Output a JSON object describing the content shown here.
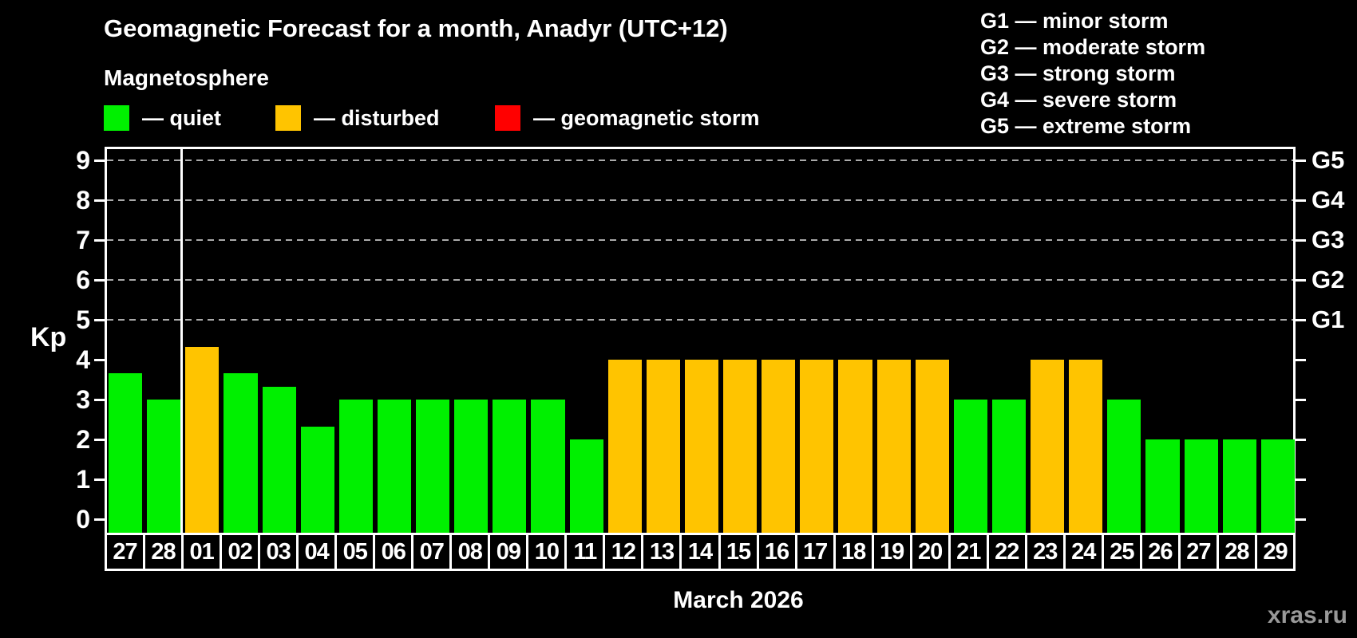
{
  "title": "Geomagnetic Forecast for a month, Anadyr (UTC+12)",
  "subtitle": "Magnetosphere",
  "legend": {
    "items": [
      {
        "name": "quiet",
        "label": "— quiet",
        "color": "#00f000"
      },
      {
        "name": "disturbed",
        "label": "— disturbed",
        "color": "#ffc400"
      },
      {
        "name": "storm",
        "label": "— geomagnetic storm",
        "color": "#ff0000"
      }
    ]
  },
  "g_legend": [
    "G1 — minor storm",
    "G2 — moderate storm",
    "G3 — strong storm",
    "G4 — severe storm",
    "G5 — extreme storm"
  ],
  "watermark": "xras.ru",
  "chart_data": {
    "type": "bar",
    "title": "Geomagnetic Forecast for a month, Anadyr (UTC+12)",
    "xlabel": "March 2026",
    "ylabel": "Kp",
    "ylim": [
      0,
      9
    ],
    "yticks": [
      0,
      1,
      2,
      3,
      4,
      5,
      6,
      7,
      8,
      9
    ],
    "grid_kp": [
      5,
      6,
      7,
      8,
      9
    ],
    "g_labels": [
      {
        "kp": 5,
        "label": "G1"
      },
      {
        "kp": 6,
        "label": "G2"
      },
      {
        "kp": 7,
        "label": "G3"
      },
      {
        "kp": 8,
        "label": "G4"
      },
      {
        "kp": 9,
        "label": "G5"
      }
    ],
    "categories": [
      "27",
      "28",
      "01",
      "02",
      "03",
      "04",
      "05",
      "06",
      "07",
      "08",
      "09",
      "10",
      "11",
      "12",
      "13",
      "14",
      "15",
      "16",
      "17",
      "18",
      "19",
      "20",
      "21",
      "22",
      "23",
      "24",
      "25",
      "26",
      "27",
      "28",
      "29"
    ],
    "values": [
      3.67,
      3,
      4.33,
      3.67,
      3.33,
      2.33,
      3,
      3,
      3,
      3,
      3,
      3,
      2,
      4,
      4,
      4,
      4,
      4,
      4,
      4,
      4,
      4,
      3,
      3,
      4,
      4,
      3,
      2,
      2,
      2,
      2
    ],
    "levels": [
      "quiet",
      "quiet",
      "disturbed",
      "quiet",
      "quiet",
      "quiet",
      "quiet",
      "quiet",
      "quiet",
      "quiet",
      "quiet",
      "quiet",
      "quiet",
      "disturbed",
      "disturbed",
      "disturbed",
      "disturbed",
      "disturbed",
      "disturbed",
      "disturbed",
      "disturbed",
      "disturbed",
      "quiet",
      "quiet",
      "disturbed",
      "disturbed",
      "quiet",
      "quiet",
      "quiet",
      "quiet",
      "quiet"
    ],
    "colors": {
      "quiet": "#00f000",
      "disturbed": "#ffc400",
      "storm": "#ff0000"
    },
    "month_separator_after_index": 1,
    "legend_note": "grid shown only at G-storm levels Kp 5–9"
  }
}
